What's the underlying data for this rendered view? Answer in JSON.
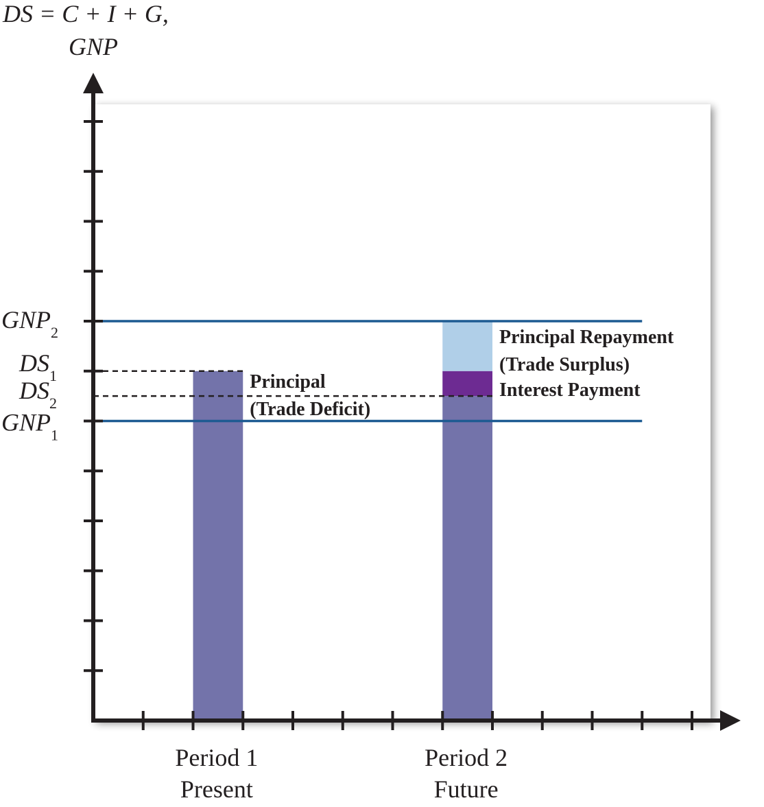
{
  "chart_data": {
    "type": "bar",
    "y_axis_label_line1": "DS = C + I + G,",
    "y_axis_label_line2": "GNP",
    "ylim": [
      0,
      12.5
    ],
    "y_tick_values": [
      1,
      2,
      3,
      4,
      5,
      6,
      7,
      8,
      9,
      10,
      11,
      12
    ],
    "x_tick_values": [
      1,
      2,
      3,
      4,
      5,
      6,
      7,
      8,
      9,
      10,
      11,
      12
    ],
    "xlim": [
      0,
      12.5
    ],
    "categories": [
      {
        "line1": "Period 1",
        "line2": "Present",
        "center": 2.5
      },
      {
        "line1": "Period 2",
        "line2": "Future",
        "center": 7.5
      }
    ],
    "bar_width": 1.0,
    "levels": {
      "GNP1": {
        "base": "GNP",
        "sub": "1",
        "value": 6
      },
      "GNP2": {
        "base": "GNP",
        "sub": "2",
        "value": 8
      },
      "DS1": {
        "base": "DS",
        "sub": "1",
        "value": 7
      },
      "DS2": {
        "base": "DS",
        "sub": "2",
        "value": 6.5
      }
    },
    "bars": [
      {
        "category": "Period 1",
        "segments": [
          {
            "from": 0,
            "to": 7,
            "color": "#7373aa"
          }
        ]
      },
      {
        "category": "Period 2",
        "segments": [
          {
            "from": 0,
            "to": 6.5,
            "color": "#7373aa"
          },
          {
            "from": 6.5,
            "to": 7,
            "color": "#6d2b92"
          },
          {
            "from": 7,
            "to": 8,
            "color": "#b0cfe8"
          }
        ]
      }
    ],
    "annotations": [
      {
        "line1": "Principal",
        "line2": "(Trade Deficit)"
      },
      {
        "line1": "Principal Repayment",
        "line2": "(Trade Surplus)"
      },
      {
        "line1": "Interest Payment"
      }
    ],
    "colors": {
      "bar": "#7373aa",
      "interest": "#6d2b92",
      "repayment": "#b0cfe8",
      "gnp_line": "#1d5b92",
      "axis": "#231f20"
    }
  }
}
